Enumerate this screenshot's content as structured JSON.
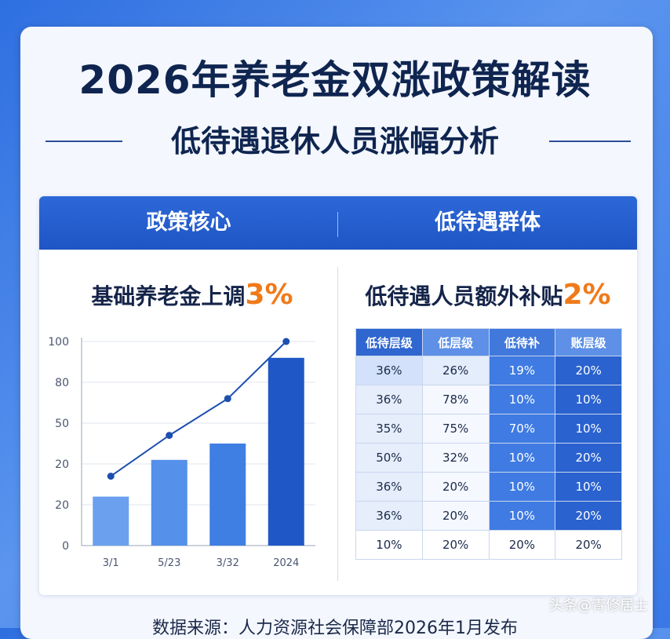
{
  "title": "2026年养老金双涨政策解读",
  "subtitle": "低待遇退休人员涨幅分析",
  "band": {
    "left": "政策核心",
    "right": "低待遇群体"
  },
  "left_head": {
    "text": "基础养老金上调",
    "pct": "3%"
  },
  "right_head": {
    "text": "低待遇人员额外补贴",
    "pct": "2%"
  },
  "colors": {
    "accent": "#f07a1a",
    "bar_light": "#5b95ea",
    "bar_dark": "#1e56c2",
    "line": "#1d4fb0",
    "band": "#2263d0"
  },
  "chart_data": [
    {
      "type": "bar",
      "categories": [
        "3/1",
        "5/23",
        "3/32",
        "2024"
      ],
      "series": [
        {
          "values": [
            24,
            42,
            50,
            92
          ]
        },
        {
          "type": "line",
          "values": [
            34,
            54,
            72,
            100
          ]
        }
      ],
      "y_ticks": [
        "0",
        "20",
        "20",
        "50",
        "80",
        "100"
      ],
      "ylim": [
        0,
        100
      ],
      "grid": true
    },
    {
      "type": "table",
      "columns": [
        "低待层级",
        "低层级",
        "低待补",
        "账层级"
      ],
      "rows": [
        [
          "36%",
          "26%",
          "19%",
          "20%"
        ],
        [
          "36%",
          "78%",
          "10%",
          "10%"
        ],
        [
          "35%",
          "75%",
          "70%",
          "10%"
        ],
        [
          "50%",
          "32%",
          "10%",
          "20%"
        ],
        [
          "36%",
          "20%",
          "10%",
          "10%"
        ],
        [
          "36%",
          "20%",
          "10%",
          "20%"
        ],
        [
          "10%",
          "20%",
          "20%",
          "20%"
        ]
      ]
    }
  ],
  "footer": "数据来源：人力资源社会保障部2026年1月发布",
  "watermark": "头条@青修居士"
}
